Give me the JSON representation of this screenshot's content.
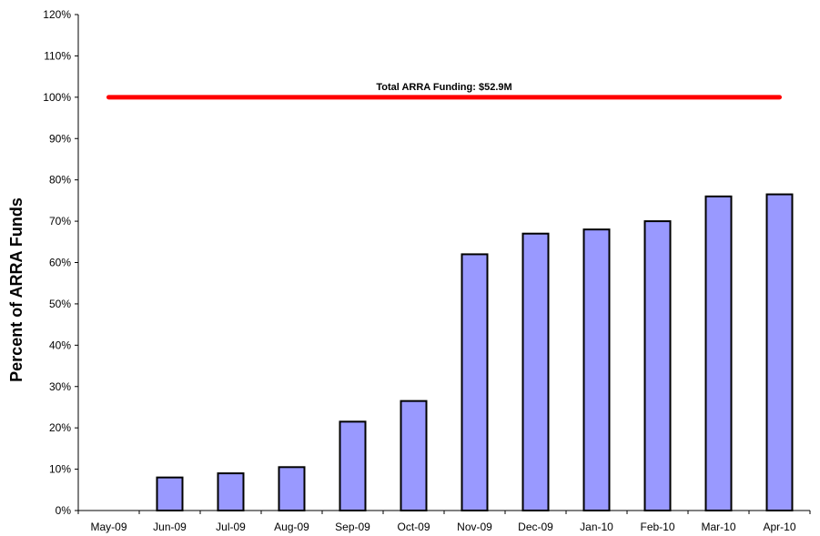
{
  "chart_data": {
    "type": "bar",
    "title": "",
    "xlabel": "",
    "ylabel": "Percent of ARRA Funds",
    "categories": [
      "May-09",
      "Jun-09",
      "Jul-09",
      "Aug-09",
      "Sep-09",
      "Oct-09",
      "Nov-09",
      "Dec-09",
      "Jan-10",
      "Feb-10",
      "Mar-10",
      "Apr-10"
    ],
    "values": [
      0,
      8,
      9,
      10.5,
      21.5,
      26.5,
      62,
      67,
      68,
      70,
      76,
      76.5
    ],
    "ylim": [
      0,
      120
    ],
    "yticks": [
      "0%",
      "10%",
      "20%",
      "30%",
      "40%",
      "50%",
      "60%",
      "70%",
      "80%",
      "90%",
      "100%",
      "110%",
      "120%"
    ],
    "grid": false,
    "legend": "none",
    "bar_color": "#9999ff",
    "bar_edge_color": "#000000",
    "reference_line": {
      "value": 100,
      "label": "Total ARRA Funding: $52.9M",
      "color": "#ff0000"
    }
  }
}
